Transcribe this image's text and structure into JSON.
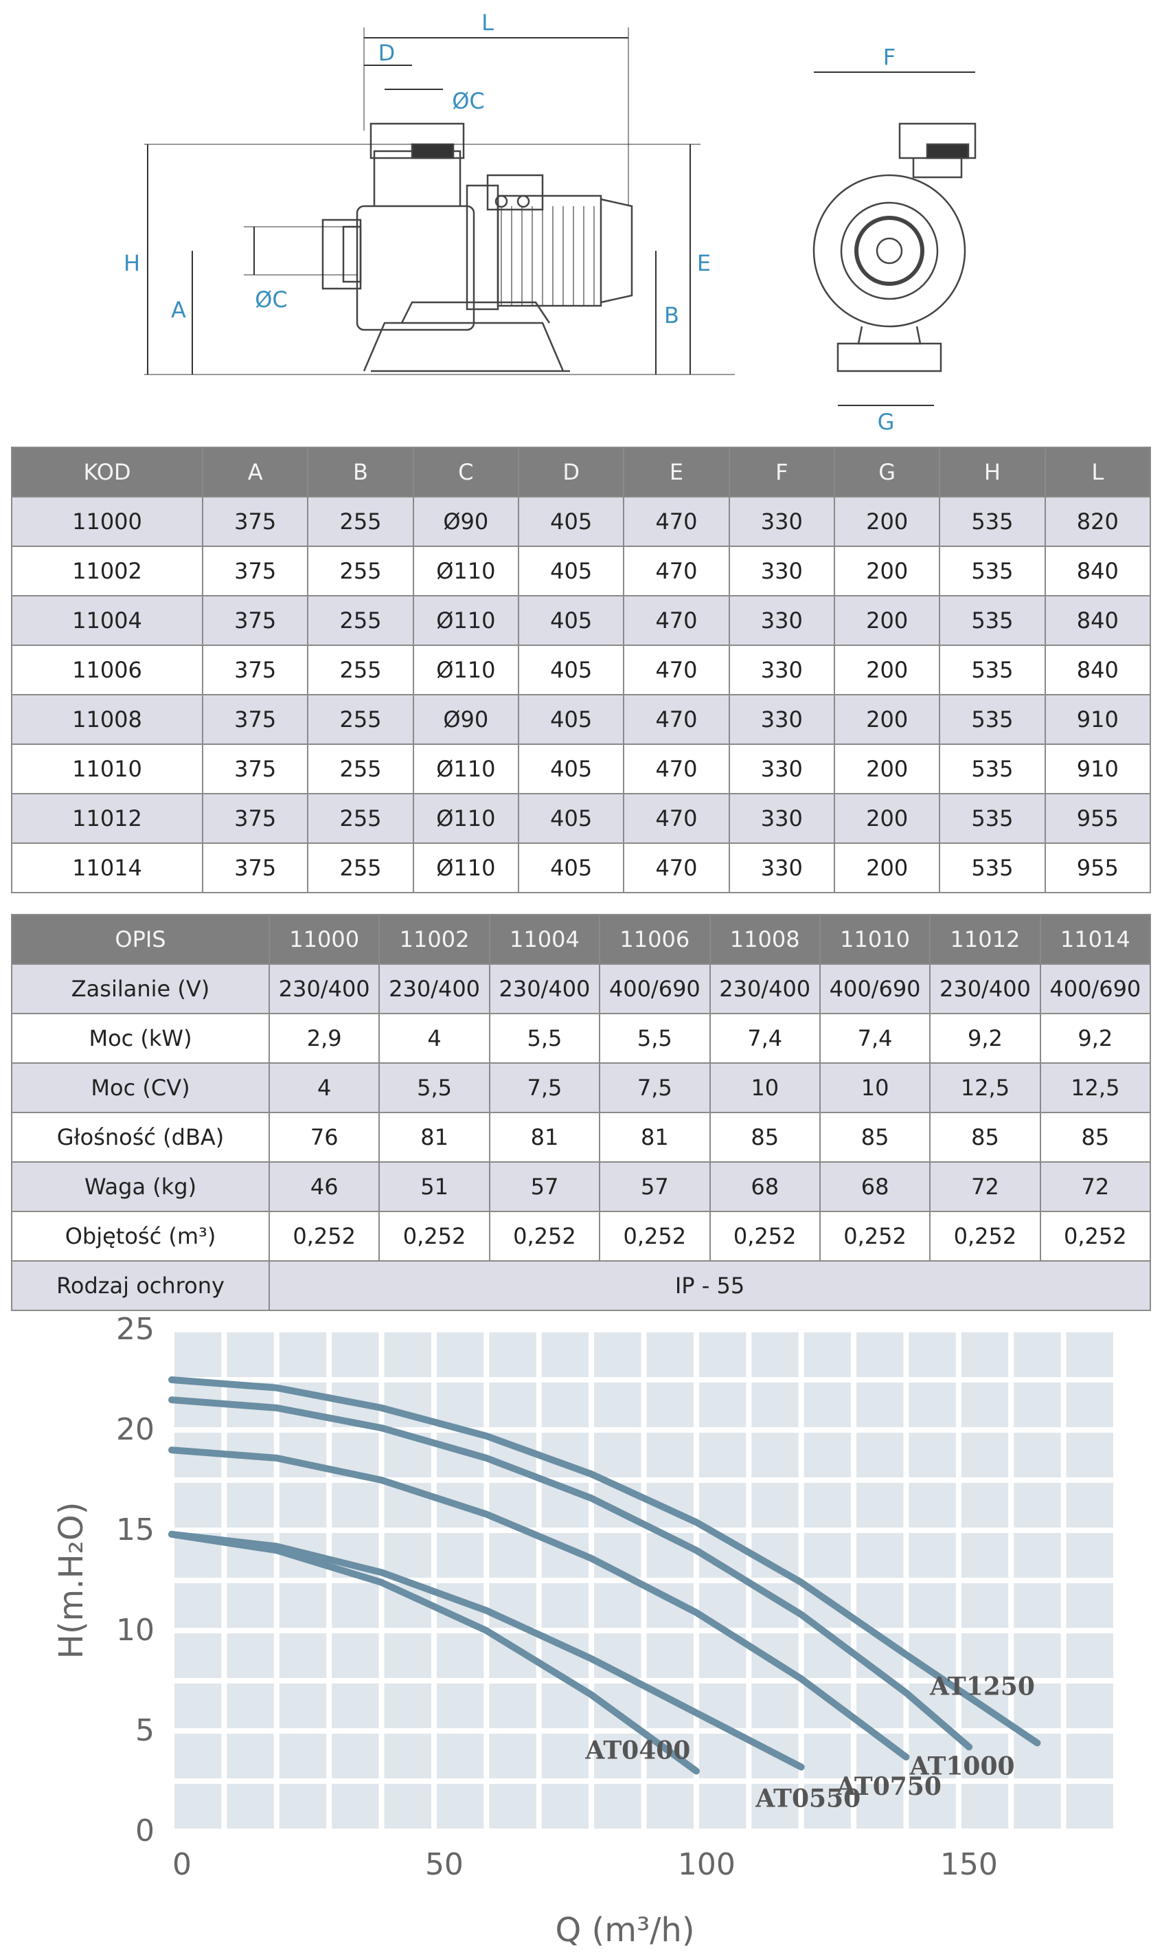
{
  "drawing": {
    "dimension_labels": [
      "L",
      "D",
      "ØC",
      "H",
      "A",
      "ØC",
      "E",
      "B",
      "F",
      "G"
    ],
    "label_color": "#3a8fc0"
  },
  "dimensions_table": {
    "headers": [
      "KOD",
      "A",
      "B",
      "C",
      "D",
      "E",
      "F",
      "G",
      "H",
      "L"
    ],
    "rows": [
      [
        "11000",
        "375",
        "255",
        "Ø90",
        "405",
        "470",
        "330",
        "200",
        "535",
        "820"
      ],
      [
        "11002",
        "375",
        "255",
        "Ø110",
        "405",
        "470",
        "330",
        "200",
        "535",
        "840"
      ],
      [
        "11004",
        "375",
        "255",
        "Ø110",
        "405",
        "470",
        "330",
        "200",
        "535",
        "840"
      ],
      [
        "11006",
        "375",
        "255",
        "Ø110",
        "405",
        "470",
        "330",
        "200",
        "535",
        "840"
      ],
      [
        "11008",
        "375",
        "255",
        "Ø90",
        "405",
        "470",
        "330",
        "200",
        "535",
        "910"
      ],
      [
        "11010",
        "375",
        "255",
        "Ø110",
        "405",
        "470",
        "330",
        "200",
        "535",
        "910"
      ],
      [
        "11012",
        "375",
        "255",
        "Ø110",
        "405",
        "470",
        "330",
        "200",
        "535",
        "955"
      ],
      [
        "11014",
        "375",
        "255",
        "Ø110",
        "405",
        "470",
        "330",
        "200",
        "535",
        "955"
      ]
    ]
  },
  "specs_table": {
    "headers": [
      "OPIS",
      "11000",
      "11002",
      "11004",
      "11006",
      "11008",
      "11010",
      "11012",
      "11014"
    ],
    "rows": [
      [
        "Zasilanie (V)",
        "230/400",
        "230/400",
        "230/400",
        "400/690",
        "230/400",
        "400/690",
        "230/400",
        "400/690"
      ],
      [
        "Moc (kW)",
        "2,9",
        "4",
        "5,5",
        "5,5",
        "7,4",
        "7,4",
        "9,2",
        "9,2"
      ],
      [
        "Moc (CV)",
        "4",
        "5,5",
        "7,5",
        "7,5",
        "10",
        "10",
        "12,5",
        "12,5"
      ],
      [
        "Głośność (dBA)",
        "76",
        "81",
        "81",
        "81",
        "85",
        "85",
        "85",
        "85"
      ],
      [
        "Waga (kg)",
        "46",
        "51",
        "57",
        "57",
        "68",
        "68",
        "72",
        "72"
      ],
      [
        "Objętość (m³)",
        "0,252",
        "0,252",
        "0,252",
        "0,252",
        "0,252",
        "0,252",
        "0,252",
        "0,252"
      ]
    ],
    "protection_label": "Rodzaj ochrony",
    "protection_value": "IP - 55"
  },
  "chart_data": {
    "type": "line",
    "xlabel": "Q (m³/h)",
    "ylabel": "H(m.H₂O)",
    "xlim": [
      0,
      180
    ],
    "ylim": [
      0,
      25
    ],
    "x_ticks": [
      "0",
      "50",
      "100",
      "150"
    ],
    "y_ticks": [
      "0",
      "5",
      "10",
      "15",
      "20",
      "25"
    ],
    "grid": true,
    "line_color": "#6a8ea3",
    "series": [
      {
        "name": "AT0400",
        "x": [
          0,
          20,
          40,
          60,
          80,
          100
        ],
        "y": [
          14.8,
          14.0,
          12.4,
          10.0,
          6.8,
          3.0
        ]
      },
      {
        "name": "AT0550",
        "x": [
          0,
          20,
          40,
          60,
          80,
          100,
          120
        ],
        "y": [
          14.8,
          14.2,
          12.9,
          11.0,
          8.6,
          5.9,
          3.2
        ]
      },
      {
        "name": "AT0750",
        "x": [
          0,
          20,
          40,
          60,
          80,
          100,
          120,
          140
        ],
        "y": [
          19.0,
          18.6,
          17.5,
          15.8,
          13.6,
          10.9,
          7.6,
          3.7
        ]
      },
      {
        "name": "AT1000",
        "x": [
          0,
          20,
          40,
          60,
          80,
          100,
          120,
          140,
          152
        ],
        "y": [
          21.5,
          21.1,
          20.1,
          18.6,
          16.6,
          14.0,
          10.8,
          6.9,
          4.2
        ]
      },
      {
        "name": "AT1250",
        "x": [
          0,
          20,
          40,
          60,
          80,
          100,
          120,
          140,
          165
        ],
        "y": [
          22.5,
          22.1,
          21.1,
          19.7,
          17.8,
          15.4,
          12.4,
          8.8,
          4.4
        ]
      }
    ]
  }
}
